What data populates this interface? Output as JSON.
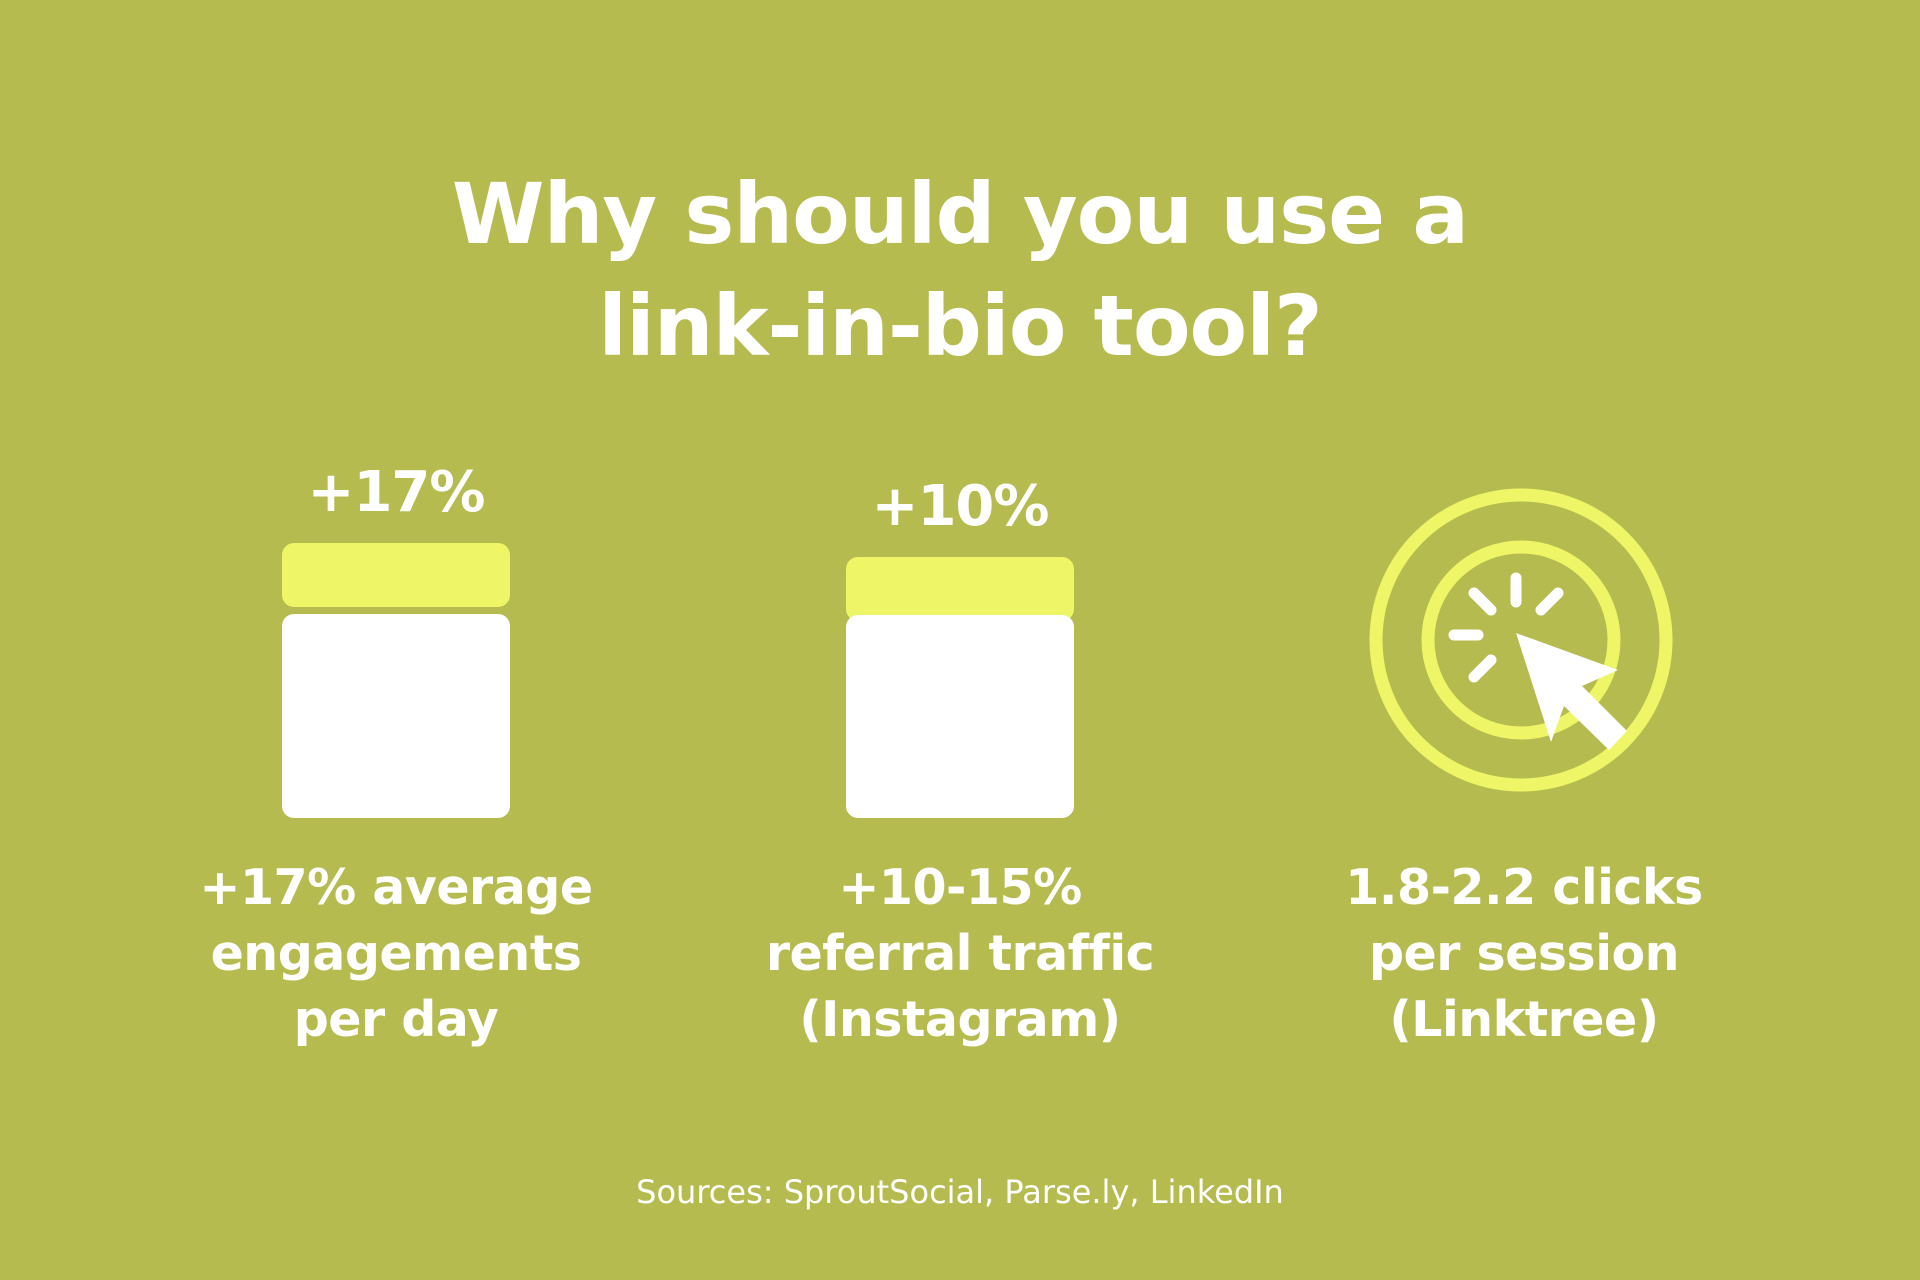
{
  "title": {
    "line1": "Why should you use a",
    "line2": "link-in-bio tool?"
  },
  "stats": [
    {
      "value_label": "+17%",
      "icon": "jar-icon",
      "description": [
        "+17% average",
        "engagements",
        "per day"
      ]
    },
    {
      "value_label": "+10%",
      "icon": "jar-icon",
      "description": [
        "+10-15%",
        "referral traffic",
        "(Instagram)"
      ]
    },
    {
      "icon": "click-cursor-icon",
      "description": [
        "1.8-2.2 clicks",
        "per session",
        "(Linktree)"
      ]
    }
  ],
  "sources": "Sources: SproutSocial, Parse.ly, LinkedIn",
  "colors": {
    "background": "#b6bb50",
    "accent": "#eef566",
    "text": "#ffffff"
  }
}
